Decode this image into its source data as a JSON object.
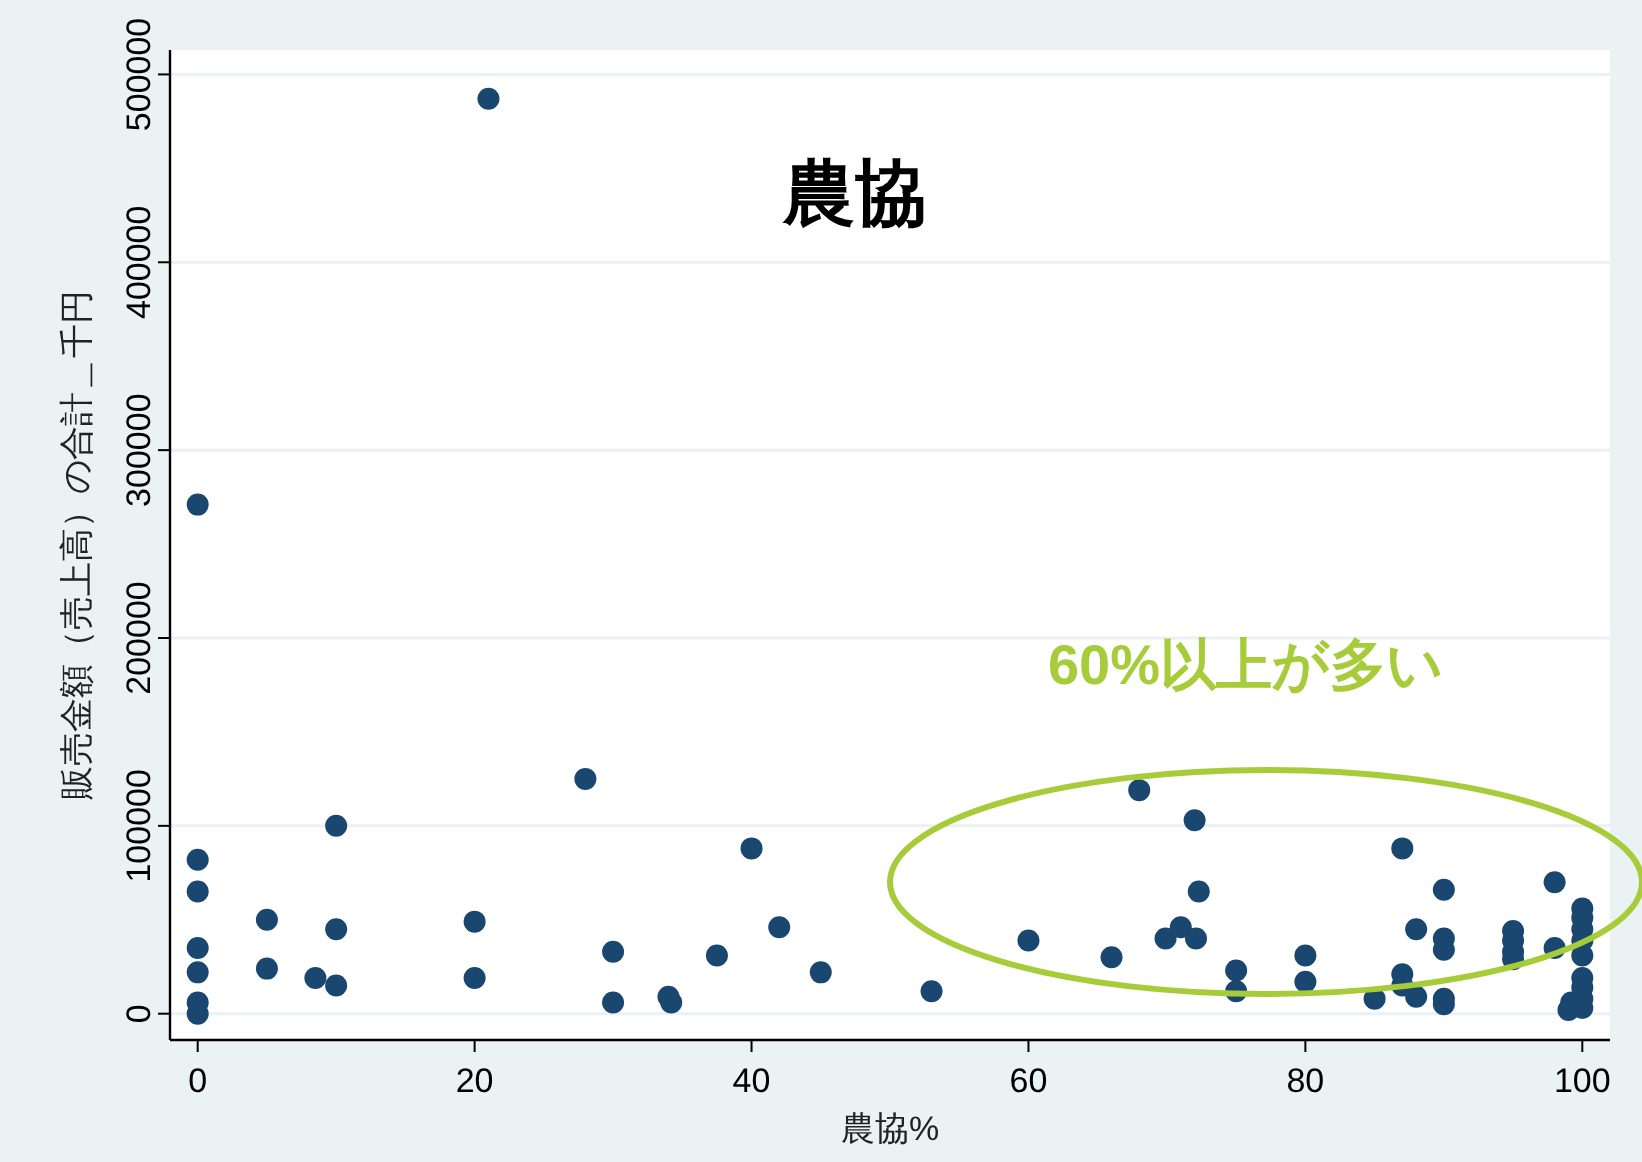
{
  "chart_data": {
    "type": "scatter",
    "title": "農協",
    "xlabel": "農協%",
    "ylabel": "販売金額（売上高）の合計＿千円",
    "annotations": [
      "60%以上が多い"
    ],
    "xlim": [
      -2,
      102
    ],
    "ylim": [
      -14000,
      513000
    ],
    "xticks": [
      0,
      20,
      40,
      60,
      80,
      100
    ],
    "yticks": [
      0,
      100000,
      200000,
      300000,
      400000,
      500000
    ],
    "grid": "y",
    "marker": "circle",
    "series": [
      {
        "color": "#1a476f",
        "x": [
          0,
          0,
          0,
          0,
          0,
          0,
          0,
          5,
          5,
          8.5,
          10,
          10,
          10,
          20,
          20,
          21,
          28,
          30,
          30,
          34,
          34.2,
          37.5,
          40,
          42,
          45,
          53,
          60,
          66,
          68,
          69.9,
          71,
          72,
          72.1,
          72.3,
          75,
          75,
          80,
          80,
          85,
          87,
          87,
          87,
          88,
          88,
          90,
          90,
          90,
          90,
          90,
          95,
          95,
          95,
          95,
          98,
          98,
          99,
          99.2,
          100,
          100,
          100,
          100,
          100,
          100,
          100,
          100,
          100
        ],
        "values": [
          271000,
          82000,
          65000,
          35000,
          22000,
          6000,
          0,
          50000,
          24000,
          19000,
          100000,
          45000,
          15000,
          49000,
          19000,
          487000,
          125000,
          33000,
          6000,
          9000,
          6000,
          31000,
          88000,
          46000,
          22000,
          12000,
          39000,
          30000,
          119000,
          40000,
          46000,
          103000,
          40000,
          65000,
          23000,
          12000,
          31000,
          17000,
          8000,
          88000,
          21000,
          15000,
          45000,
          9000,
          66000,
          40000,
          34000,
          8000,
          5000,
          44000,
          39000,
          33000,
          29000,
          70000,
          35000,
          2000,
          6000,
          56000,
          51000,
          45000,
          39000,
          31000,
          19000,
          14000,
          8000,
          3000
        ]
      }
    ]
  }
}
